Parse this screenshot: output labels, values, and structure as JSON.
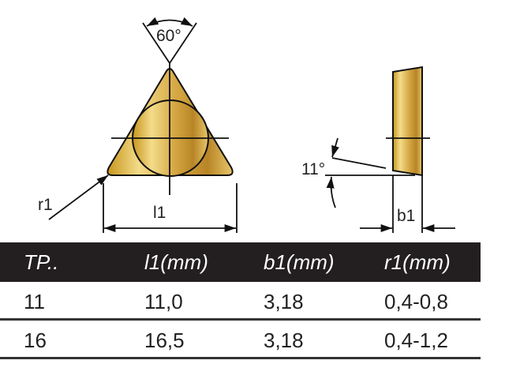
{
  "diagram": {
    "angle_label": "60°",
    "clearance_angle_label": "11°",
    "radius_label": "r1",
    "length_label": "l1",
    "thickness_label": "b1",
    "insert_color": "#c9a032"
  },
  "table": {
    "headers": [
      "TP..",
      "l1(mm)",
      "b1(mm)",
      "r1(mm)"
    ],
    "rows": [
      [
        "11",
        "11,0",
        "3,18",
        "0,4-0,8"
      ],
      [
        "16",
        "16,5",
        "3,18",
        "0,4-1,2"
      ]
    ],
    "header_bg": "#231f20"
  }
}
